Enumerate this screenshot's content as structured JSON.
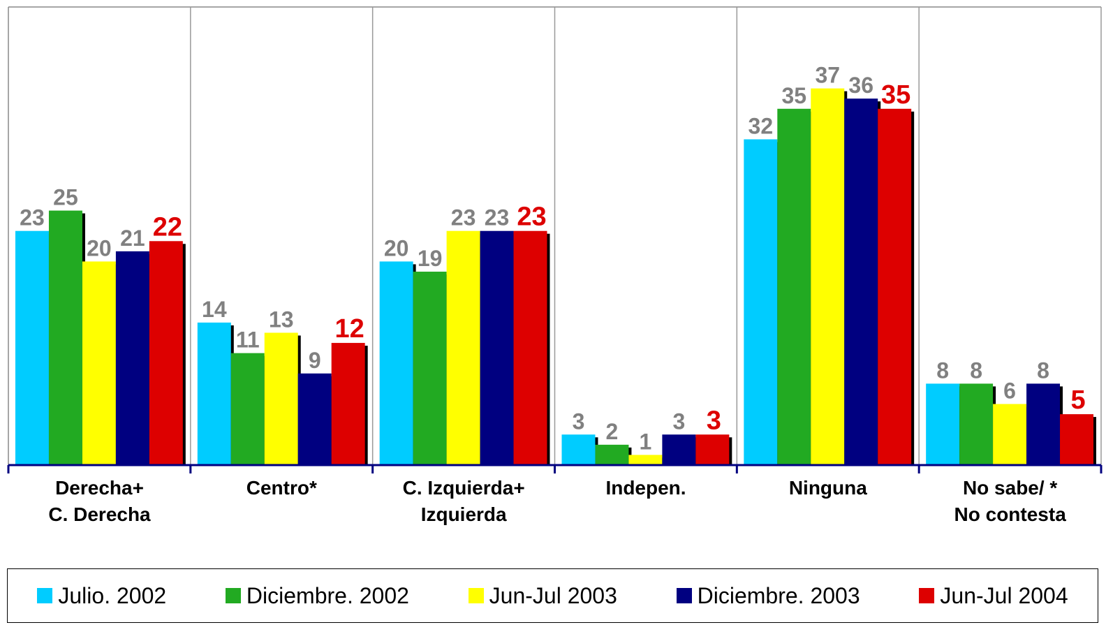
{
  "chart_data": {
    "type": "bar",
    "categories": [
      "Derecha+\nC. Derecha",
      "Centro*",
      "C. Izquierda+\nIzquierda",
      "Indepen.",
      "Ninguna",
      "No sabe/ *\nNo contesta"
    ],
    "series": [
      {
        "name": "Julio. 2002",
        "color": "#00ccff",
        "values": [
          23,
          14,
          20,
          3,
          32,
          8
        ]
      },
      {
        "name": "Diciembre. 2002",
        "color": "#22aa22",
        "values": [
          25,
          11,
          19,
          2,
          35,
          8
        ]
      },
      {
        "name": "Jun-Jul 2003",
        "color": "#ffff00",
        "values": [
          20,
          13,
          23,
          1,
          37,
          6
        ]
      },
      {
        "name": "Diciembre. 2003",
        "color": "#000080",
        "values": [
          21,
          9,
          23,
          3,
          36,
          8
        ]
      },
      {
        "name": "Jun-Jul 2004",
        "color": "#dd0000",
        "values": [
          22,
          12,
          23,
          3,
          35,
          5
        ]
      }
    ],
    "ylim": [
      0,
      45
    ],
    "grid": true
  }
}
